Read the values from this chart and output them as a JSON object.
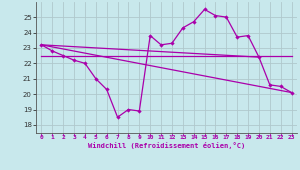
{
  "xlabel": "Windchill (Refroidissement éolien,°C)",
  "background_color": "#c8e8ec",
  "grid_color": "#b0c8cc",
  "line_color": "#aa00aa",
  "xlim": [
    -0.5,
    23.5
  ],
  "ylim": [
    17.5,
    26.0
  ],
  "yticks": [
    18,
    19,
    20,
    21,
    22,
    23,
    24,
    25
  ],
  "xticks": [
    0,
    1,
    2,
    3,
    4,
    5,
    6,
    7,
    8,
    9,
    10,
    11,
    12,
    13,
    14,
    15,
    16,
    17,
    18,
    19,
    20,
    21,
    22,
    23
  ],
  "curve_x": [
    0,
    1,
    2,
    3,
    4,
    5,
    6,
    7,
    8,
    9,
    10,
    11,
    12,
    13,
    14,
    15,
    16,
    17,
    18,
    19,
    20,
    21,
    22,
    23
  ],
  "curve_y": [
    23.2,
    22.8,
    22.5,
    22.2,
    22.0,
    21.0,
    20.3,
    18.5,
    19.0,
    18.9,
    23.8,
    23.2,
    23.3,
    24.3,
    24.7,
    25.5,
    25.1,
    25.0,
    23.7,
    23.8,
    22.4,
    20.6,
    20.5,
    20.1
  ],
  "line1_x": [
    0,
    23
  ],
  "line1_y": [
    23.2,
    20.1
  ],
  "line2_x": [
    0,
    20
  ],
  "line2_y": [
    23.2,
    22.4
  ],
  "line3_x": [
    0,
    23
  ],
  "line3_y": [
    22.5,
    22.5
  ]
}
